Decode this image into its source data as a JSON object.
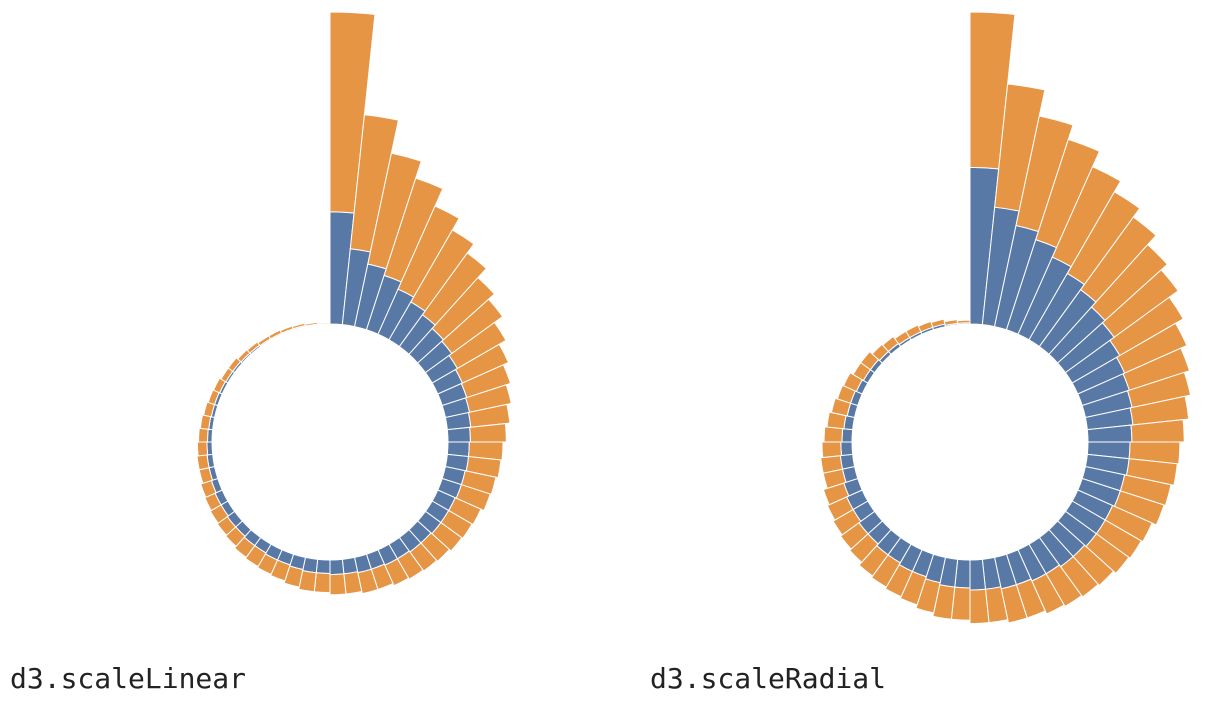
{
  "colors": {
    "inner": "#5878a6",
    "outer": "#e59544",
    "stroke": "#ffffff",
    "background": "#ffffff"
  },
  "chart_data": [
    {
      "type": "radial-stacked-bar",
      "scale": "linear",
      "caption": "d3.scaleLinear",
      "series": [
        {
          "color": "#5878a6",
          "values": [
            1.0,
            0.68,
            0.57,
            0.51,
            0.44,
            0.39,
            0.35,
            0.31,
            0.29,
            0.26,
            0.24,
            0.23,
            0.22,
            0.21,
            0.2,
            0.19,
            0.19,
            0.18,
            0.18,
            0.17,
            0.17,
            0.17,
            0.16,
            0.16,
            0.15,
            0.15,
            0.14,
            0.14,
            0.13,
            0.13,
            0.12,
            0.12,
            0.11,
            0.1,
            0.1,
            0.09,
            0.09,
            0.08,
            0.08,
            0.07,
            0.07,
            0.06,
            0.05,
            0.05,
            0.045,
            0.04,
            0.035,
            0.03,
            0.03,
            0.025,
            0.02,
            0.02,
            0.015,
            0.015,
            0.01,
            0.01,
            0.01,
            0.01,
            0.005,
            0.005
          ]
        },
        {
          "color": "#e59544",
          "values": [
            1.78,
            1.2,
            1.01,
            0.91,
            0.81,
            0.74,
            0.68,
            0.61,
            0.56,
            0.5,
            0.45,
            0.41,
            0.38,
            0.35,
            0.32,
            0.3,
            0.29,
            0.28,
            0.27,
            0.25,
            0.24,
            0.23,
            0.22,
            0.21,
            0.21,
            0.2,
            0.19,
            0.19,
            0.18,
            0.18,
            0.17,
            0.17,
            0.16,
            0.15,
            0.14,
            0.14,
            0.13,
            0.12,
            0.11,
            0.11,
            0.1,
            0.1,
            0.09,
            0.09,
            0.085,
            0.08,
            0.075,
            0.07,
            0.06,
            0.06,
            0.05,
            0.05,
            0.04,
            0.035,
            0.03,
            0.03,
            0.025,
            0.02,
            0.015,
            0.01
          ]
        }
      ]
    },
    {
      "type": "radial-stacked-bar",
      "scale": "radial",
      "caption": "d3.scaleRadial",
      "series": [
        {
          "color": "#5878a6",
          "values": [
            1.0,
            0.68,
            0.57,
            0.51,
            0.44,
            0.39,
            0.35,
            0.31,
            0.29,
            0.26,
            0.24,
            0.23,
            0.22,
            0.21,
            0.2,
            0.19,
            0.19,
            0.18,
            0.18,
            0.17,
            0.17,
            0.17,
            0.16,
            0.16,
            0.15,
            0.15,
            0.14,
            0.14,
            0.13,
            0.13,
            0.12,
            0.12,
            0.11,
            0.1,
            0.1,
            0.09,
            0.09,
            0.08,
            0.08,
            0.07,
            0.07,
            0.06,
            0.05,
            0.05,
            0.045,
            0.04,
            0.035,
            0.03,
            0.03,
            0.025,
            0.02,
            0.02,
            0.015,
            0.015,
            0.01,
            0.01,
            0.01,
            0.01,
            0.005,
            0.005
          ]
        },
        {
          "color": "#e59544",
          "values": [
            1.78,
            1.2,
            1.01,
            0.91,
            0.81,
            0.74,
            0.68,
            0.61,
            0.56,
            0.5,
            0.45,
            0.41,
            0.38,
            0.35,
            0.32,
            0.3,
            0.29,
            0.28,
            0.27,
            0.25,
            0.24,
            0.23,
            0.22,
            0.21,
            0.21,
            0.2,
            0.19,
            0.19,
            0.18,
            0.18,
            0.17,
            0.17,
            0.16,
            0.15,
            0.14,
            0.14,
            0.13,
            0.12,
            0.11,
            0.11,
            0.1,
            0.1,
            0.09,
            0.09,
            0.085,
            0.08,
            0.075,
            0.07,
            0.06,
            0.06,
            0.05,
            0.05,
            0.04,
            0.035,
            0.03,
            0.03,
            0.025,
            0.02,
            0.015,
            0.01
          ]
        }
      ]
    }
  ]
}
